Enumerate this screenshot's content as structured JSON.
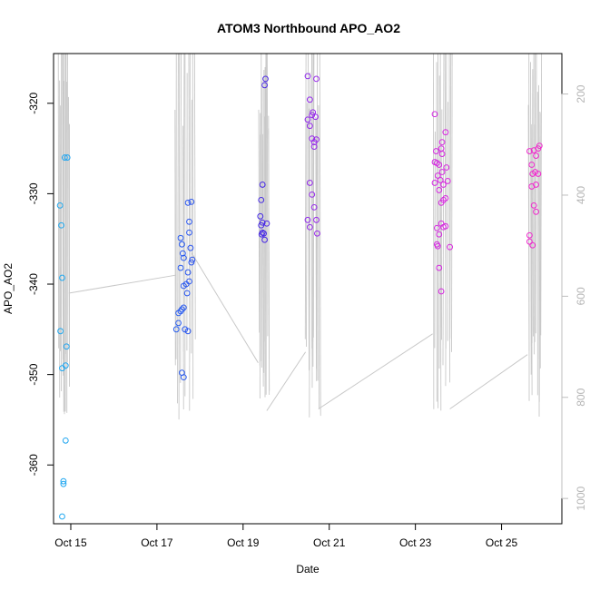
{
  "chart_data": {
    "type": "scatter",
    "title": "ATOM3 Northbound APO_AO2",
    "xlabel": "Date",
    "ylabel": "APO_AO2",
    "x_units": "days (October, day of month)",
    "xlim": [
      14.6,
      26.4
    ],
    "ylim": [
      -366.5,
      -314.5
    ],
    "y_reversed": true,
    "y_ticks": [
      -320,
      -330,
      -340,
      -350,
      -360
    ],
    "x_ticks": [
      {
        "value": 15,
        "label": "Oct 15"
      },
      {
        "value": 17,
        "label": "Oct 17"
      },
      {
        "value": 19,
        "label": "Oct 19"
      },
      {
        "value": 21,
        "label": "Oct 21"
      },
      {
        "value": 23,
        "label": "Oct 23"
      },
      {
        "value": 25,
        "label": "Oct 25"
      }
    ],
    "right_axis": {
      "label": "",
      "lim": [
        120,
        1050
      ],
      "reversed": true,
      "ticks": [
        200,
        400,
        600,
        800,
        1000
      ]
    },
    "grid": false,
    "points": [
      [
        14.75,
        -331.3
      ],
      [
        14.78,
        -333.5
      ],
      [
        14.8,
        -339.3
      ],
      [
        14.76,
        -345.2
      ],
      [
        14.8,
        -349.3
      ],
      [
        14.88,
        -349.0
      ],
      [
        14.9,
        -346.9
      ],
      [
        14.86,
        -326.0
      ],
      [
        14.92,
        -326.0
      ],
      [
        14.88,
        -357.3
      ],
      [
        14.83,
        -361.8
      ],
      [
        14.83,
        -362.1
      ],
      [
        14.8,
        -365.7
      ],
      [
        17.45,
        -345.0
      ],
      [
        17.5,
        -344.3
      ],
      [
        17.5,
        -343.2
      ],
      [
        17.55,
        -343.0
      ],
      [
        17.58,
        -342.8
      ],
      [
        17.62,
        -342.6
      ],
      [
        17.55,
        -334.9
      ],
      [
        17.58,
        -335.6
      ],
      [
        17.6,
        -336.6
      ],
      [
        17.62,
        -337.1
      ],
      [
        17.55,
        -338.2
      ],
      [
        17.62,
        -340.2
      ],
      [
        17.68,
        -340.0
      ],
      [
        17.7,
        -341.0
      ],
      [
        17.65,
        -345.0
      ],
      [
        17.72,
        -345.2
      ],
      [
        17.58,
        -349.8
      ],
      [
        17.62,
        -350.3
      ],
      [
        17.72,
        -331.0
      ],
      [
        17.8,
        -330.9
      ],
      [
        17.75,
        -333.1
      ],
      [
        17.75,
        -334.3
      ],
      [
        17.8,
        -337.6
      ],
      [
        17.82,
        -337.3
      ],
      [
        17.72,
        -338.7
      ],
      [
        17.75,
        -339.7
      ],
      [
        17.78,
        -336.0
      ],
      [
        19.4,
        -332.5
      ],
      [
        19.42,
        -330.7
      ],
      [
        19.45,
        -329.0
      ],
      [
        19.42,
        -333.5
      ],
      [
        19.45,
        -334.3
      ],
      [
        19.48,
        -334.4
      ],
      [
        19.5,
        -335.1
      ],
      [
        19.55,
        -333.3
      ],
      [
        19.5,
        -318.0
      ],
      [
        19.52,
        -317.3
      ],
      [
        19.45,
        -333.2
      ],
      [
        19.43,
        -334.5
      ],
      [
        20.5,
        -317.0
      ],
      [
        20.55,
        -319.6
      ],
      [
        20.6,
        -321.3
      ],
      [
        20.62,
        -321.0
      ],
      [
        20.68,
        -321.5
      ],
      [
        20.7,
        -317.3
      ],
      [
        20.5,
        -321.8
      ],
      [
        20.55,
        -322.5
      ],
      [
        20.6,
        -323.9
      ],
      [
        20.65,
        -324.3
      ],
      [
        20.7,
        -324.0
      ],
      [
        20.65,
        -324.8
      ],
      [
        20.55,
        -328.8
      ],
      [
        20.6,
        -330.1
      ],
      [
        20.65,
        -331.5
      ],
      [
        20.7,
        -332.9
      ],
      [
        20.5,
        -332.9
      ],
      [
        20.55,
        -333.7
      ],
      [
        20.72,
        -334.4
      ],
      [
        23.45,
        -321.2
      ],
      [
        23.45,
        -326.5
      ],
      [
        23.5,
        -326.6
      ],
      [
        23.55,
        -326.8
      ],
      [
        23.48,
        -325.3
      ],
      [
        23.6,
        -325.0
      ],
      [
        23.62,
        -325.6
      ],
      [
        23.62,
        -324.3
      ],
      [
        23.7,
        -323.2
      ],
      [
        23.52,
        -328.0
      ],
      [
        23.58,
        -328.5
      ],
      [
        23.62,
        -327.6
      ],
      [
        23.65,
        -329.0
      ],
      [
        23.45,
        -328.8
      ],
      [
        23.55,
        -329.6
      ],
      [
        23.6,
        -331.0
      ],
      [
        23.65,
        -330.7
      ],
      [
        23.7,
        -330.5
      ],
      [
        23.75,
        -328.6
      ],
      [
        23.72,
        -327.1
      ],
      [
        23.5,
        -333.8
      ],
      [
        23.55,
        -334.5
      ],
      [
        23.6,
        -333.3
      ],
      [
        23.65,
        -333.7
      ],
      [
        23.7,
        -333.6
      ],
      [
        23.52,
        -335.8
      ],
      [
        23.5,
        -335.6
      ],
      [
        23.55,
        -338.2
      ],
      [
        23.6,
        -340.8
      ],
      [
        23.8,
        -335.9
      ],
      [
        25.65,
        -325.3
      ],
      [
        25.7,
        -326.8
      ],
      [
        25.75,
        -325.2
      ],
      [
        25.8,
        -325.8
      ],
      [
        25.85,
        -325.0
      ],
      [
        25.88,
        -324.7
      ],
      [
        25.72,
        -327.8
      ],
      [
        25.78,
        -327.6
      ],
      [
        25.85,
        -327.8
      ],
      [
        25.7,
        -329.2
      ],
      [
        25.8,
        -329.0
      ],
      [
        25.75,
        -331.3
      ],
      [
        25.8,
        -332.0
      ],
      [
        25.65,
        -334.6
      ],
      [
        25.65,
        -335.3
      ],
      [
        25.72,
        -335.7
      ]
    ],
    "line_segments": [
      {
        "from": [
          14.95,
          -341.0
        ],
        "to": [
          17.45,
          -339.0
        ]
      },
      {
        "from": [
          17.8,
          -336.5
        ],
        "to": [
          19.35,
          -348.7
        ]
      },
      {
        "from": [
          19.55,
          -354.0
        ],
        "to": [
          20.45,
          -347.5
        ]
      },
      {
        "from": [
          20.75,
          -353.8
        ],
        "to": [
          23.4,
          -345.5
        ]
      },
      {
        "from": [
          23.8,
          -353.8
        ],
        "to": [
          25.6,
          -347.8
        ]
      }
    ]
  }
}
